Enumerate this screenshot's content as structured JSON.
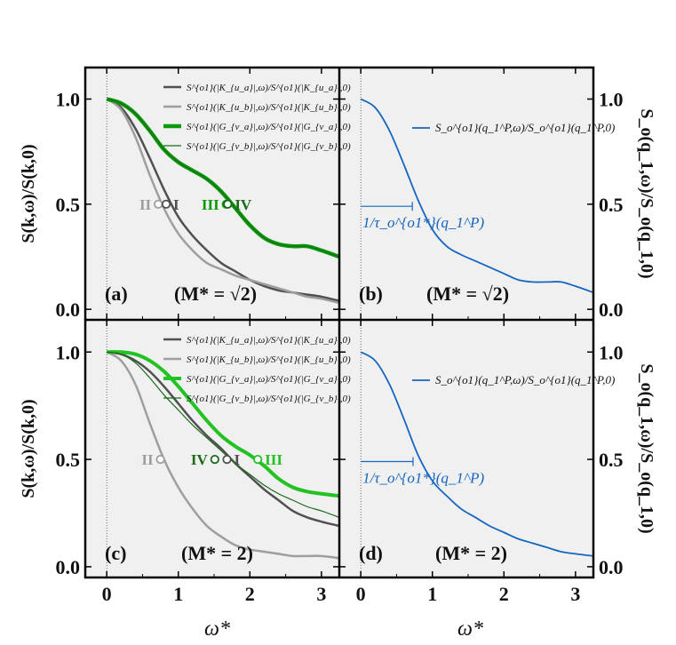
{
  "figure": {
    "xlabel": "ω*",
    "ylabel_left_top": "S(k,ω)/S(k,0)",
    "ylabel_left_bottom": "S(k,ω)/S(k,0)",
    "ylabel_right_top": "S_o(q_1,ω)/S_o(q_1,0)",
    "ylabel_right_bottom": "S_o(q_1,ω)/S_o(q_1,0)",
    "x_ticks": [
      "0",
      "1",
      "2",
      "3"
    ],
    "y_ticks": [
      "0.0",
      "0.5",
      "1.0"
    ]
  },
  "colors": {
    "dark_gray": "#505050",
    "light_gray": "#9e9e9e",
    "green": "#0a9a0a",
    "dark_green": "#1a6b1a",
    "bright_green": "#22c222",
    "blue": "#1565c0",
    "panel_bg": "#f0f0f0"
  },
  "chart_data": [
    {
      "panel": "(a)",
      "annotation": "(M* = √2)",
      "type": "line",
      "xlim": [
        -0.3,
        3.25
      ],
      "ylim": [
        -0.05,
        1.15
      ],
      "x": [
        0,
        0.2,
        0.4,
        0.6,
        0.8,
        1.0,
        1.2,
        1.4,
        1.6,
        1.8,
        2.0,
        2.2,
        2.4,
        2.6,
        2.8,
        3.0,
        3.25
      ],
      "series": [
        {
          "name": "S^{o1}(|K_{u_a}|,ω)/S^{o1}(|K_{u_a}|,0)",
          "color": "#505050",
          "width": 2.5,
          "values": [
            1.0,
            0.96,
            0.86,
            0.72,
            0.57,
            0.44,
            0.35,
            0.28,
            0.22,
            0.18,
            0.14,
            0.11,
            0.09,
            0.08,
            0.07,
            0.06,
            0.04
          ]
        },
        {
          "name": "S^{o1}(|K_{u_b}|,ω)/S^{o1}(|K_{u_b}|,0)",
          "color": "#9e9e9e",
          "width": 2.5,
          "values": [
            1.0,
            0.95,
            0.82,
            0.64,
            0.48,
            0.36,
            0.28,
            0.22,
            0.19,
            0.16,
            0.14,
            0.12,
            0.1,
            0.08,
            0.06,
            0.05,
            0.03
          ]
        },
        {
          "name": "S^{o1}(|G_{v_a}|,ω)/S^{o1}(|G_{v_a}|,0)",
          "color": "#0a9a0a",
          "width": 4.5,
          "values": [
            1.0,
            0.98,
            0.93,
            0.85,
            0.76,
            0.7,
            0.66,
            0.62,
            0.56,
            0.48,
            0.4,
            0.34,
            0.31,
            0.3,
            0.3,
            0.28,
            0.25
          ]
        },
        {
          "name": "S^{o1}(|G_{v_b}|,ω)/S^{o1}(|G_{v_b}|,0)",
          "color": "#1a6b1a",
          "width": 1.2,
          "values": [
            1.0,
            0.98,
            0.93,
            0.85,
            0.76,
            0.7,
            0.66,
            0.62,
            0.56,
            0.48,
            0.4,
            0.34,
            0.31,
            0.3,
            0.3,
            0.28,
            0.25
          ]
        }
      ],
      "markers": [
        {
          "label": "II",
          "x": 0.72,
          "y": 0.5,
          "color": "#9e9e9e",
          "side": "left"
        },
        {
          "label": "I",
          "x": 0.83,
          "y": 0.5,
          "color": "#505050",
          "side": "right"
        },
        {
          "label": "III",
          "x": 1.67,
          "y": 0.5,
          "color": "#0a9a0a",
          "side": "left"
        },
        {
          "label": "IV",
          "x": 1.69,
          "y": 0.5,
          "color": "#1a6b1a",
          "side": "right"
        }
      ]
    },
    {
      "panel": "(b)",
      "annotation": "(M* = √2)",
      "type": "line",
      "xlim": [
        -0.3,
        3.25
      ],
      "ylim": [
        -0.05,
        1.15
      ],
      "x": [
        0,
        0.2,
        0.4,
        0.6,
        0.8,
        1.0,
        1.2,
        1.4,
        1.6,
        1.8,
        2.0,
        2.2,
        2.4,
        2.6,
        2.8,
        3.0,
        3.25
      ],
      "series": [
        {
          "name": "S_o^{o1}(q_1^P,ω)/S_o^{o1}(q_1^P,0)",
          "color": "#1565c0",
          "width": 1.8,
          "values": [
            1.0,
            0.96,
            0.85,
            0.69,
            0.52,
            0.38,
            0.3,
            0.26,
            0.23,
            0.2,
            0.17,
            0.14,
            0.13,
            0.13,
            0.13,
            0.11,
            0.08
          ]
        }
      ],
      "interval_annotation": {
        "label": "1/τ_o^{o1*}(q_1^P)",
        "x_start": 0,
        "x_end": 0.72,
        "y": 0.49
      }
    },
    {
      "panel": "(c)",
      "annotation": "(M* = 2)",
      "type": "line",
      "xlim": [
        -0.3,
        3.25
      ],
      "ylim": [
        -0.05,
        1.15
      ],
      "x": [
        0,
        0.2,
        0.4,
        0.6,
        0.8,
        1.0,
        1.2,
        1.4,
        1.6,
        1.8,
        2.0,
        2.2,
        2.4,
        2.6,
        2.8,
        3.0,
        3.25
      ],
      "series": [
        {
          "name": "S^{o1}(|K_{u_a}|,ω)/S^{o1}(|K_{u_a}|,0)",
          "color": "#505050",
          "width": 2.5,
          "values": [
            1.0,
            0.99,
            0.96,
            0.91,
            0.84,
            0.76,
            0.68,
            0.61,
            0.55,
            0.48,
            0.42,
            0.36,
            0.31,
            0.26,
            0.23,
            0.21,
            0.19
          ]
        },
        {
          "name": "S^{o1}(|K_{u_b}|,ω)/S^{o1}(|K_{u_b}|,0)",
          "color": "#9e9e9e",
          "width": 2.5,
          "values": [
            1.0,
            0.96,
            0.85,
            0.67,
            0.5,
            0.37,
            0.27,
            0.19,
            0.14,
            0.1,
            0.08,
            0.07,
            0.06,
            0.05,
            0.05,
            0.05,
            0.04
          ]
        },
        {
          "name": "S^{o1}(|G_{v_a}|,ω)/S^{o1}(|G_{v_a}|,0)",
          "color": "#22c222",
          "width": 4.0,
          "values": [
            1.0,
            1.0,
            0.99,
            0.96,
            0.91,
            0.84,
            0.76,
            0.68,
            0.61,
            0.56,
            0.52,
            0.47,
            0.41,
            0.37,
            0.35,
            0.34,
            0.33
          ]
        },
        {
          "name": "S^{o1}(|G_{v_b}|,ω)/S^{o1}(|G_{v_b}|,0)",
          "color": "#1a6b1a",
          "width": 1.2,
          "values": [
            1.0,
            0.99,
            0.95,
            0.88,
            0.8,
            0.73,
            0.66,
            0.6,
            0.54,
            0.48,
            0.43,
            0.38,
            0.34,
            0.31,
            0.28,
            0.26,
            0.23
          ]
        }
      ],
      "markers": [
        {
          "label": "II",
          "x": 0.75,
          "y": 0.5,
          "color": "#9e9e9e",
          "side": "left"
        },
        {
          "label": "IV",
          "x": 1.51,
          "y": 0.5,
          "color": "#1a6b1a",
          "side": "left"
        },
        {
          "label": "I",
          "x": 1.68,
          "y": 0.5,
          "color": "#505050",
          "side": "right"
        },
        {
          "label": "III",
          "x": 2.11,
          "y": 0.5,
          "color": "#22c222",
          "side": "right"
        }
      ]
    },
    {
      "panel": "(d)",
      "annotation": "(M* = 2)",
      "type": "line",
      "xlim": [
        -0.3,
        3.25
      ],
      "ylim": [
        -0.05,
        1.15
      ],
      "x": [
        0,
        0.2,
        0.4,
        0.6,
        0.8,
        1.0,
        1.2,
        1.4,
        1.6,
        1.8,
        2.0,
        2.2,
        2.4,
        2.6,
        2.8,
        3.0,
        3.25
      ],
      "series": [
        {
          "name": "S_o^{o1}(q_1^P,ω)/S_o^{o1}(q_1^P,0)",
          "color": "#1565c0",
          "width": 1.8,
          "values": [
            1.0,
            0.96,
            0.85,
            0.69,
            0.52,
            0.4,
            0.33,
            0.27,
            0.23,
            0.19,
            0.16,
            0.13,
            0.11,
            0.09,
            0.07,
            0.06,
            0.05
          ]
        }
      ],
      "interval_annotation": {
        "label": "1/τ_o^{o1*}(q_1^P)",
        "x_start": 0,
        "x_end": 0.73,
        "y": 0.49
      }
    }
  ]
}
